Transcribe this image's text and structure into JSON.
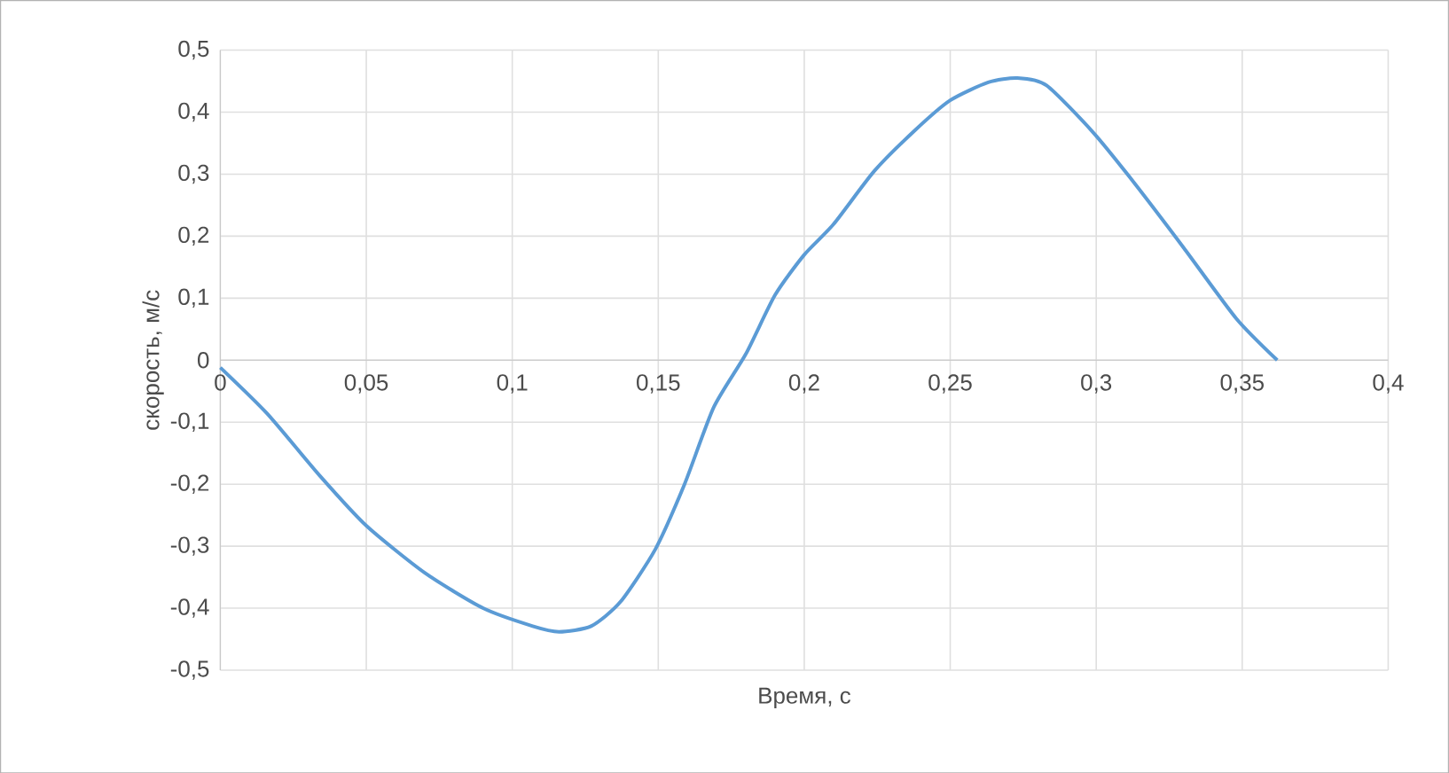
{
  "chart_data": {
    "type": "line",
    "xlabel": "Время, с",
    "ylabel": "скорость, м/с",
    "xlim": [
      0,
      0.4
    ],
    "ylim": [
      -0.5,
      0.5
    ],
    "xticks": [
      {
        "value": 0,
        "label": "0"
      },
      {
        "value": 0.05,
        "label": "0,05"
      },
      {
        "value": 0.1,
        "label": "0,1"
      },
      {
        "value": 0.15,
        "label": "0,15"
      },
      {
        "value": 0.2,
        "label": "0,2"
      },
      {
        "value": 0.25,
        "label": "0,25"
      },
      {
        "value": 0.3,
        "label": "0,3"
      },
      {
        "value": 0.35,
        "label": "0,35"
      },
      {
        "value": 0.4,
        "label": "0,4"
      }
    ],
    "yticks": [
      {
        "value": -0.5,
        "label": "-0,5"
      },
      {
        "value": -0.4,
        "label": "-0,4"
      },
      {
        "value": -0.3,
        "label": "-0,3"
      },
      {
        "value": -0.2,
        "label": "-0,2"
      },
      {
        "value": -0.1,
        "label": "-0,1"
      },
      0,
      {
        "value": 0.1,
        "label": "0,1"
      },
      {
        "value": 0.2,
        "label": "0,2"
      },
      {
        "value": 0.3,
        "label": "0,3"
      },
      {
        "value": 0.4,
        "label": "0,4"
      },
      {
        "value": 0.5,
        "label": "0,5"
      }
    ],
    "grid": true,
    "series": [
      {
        "color": "#5b9bd5",
        "x": [
          0,
          0.016,
          0.034,
          0.05,
          0.07,
          0.09,
          0.107,
          0.116,
          0.127,
          0.137,
          0.149,
          0.159,
          0.169,
          0.18,
          0.19,
          0.2,
          0.21,
          0.224,
          0.238,
          0.25,
          0.263,
          0.273,
          0.283,
          0.299,
          0.313,
          0.33,
          0.348,
          0.362
        ],
        "values": [
          -0.012,
          -0.086,
          -0.186,
          -0.267,
          -0.343,
          -0.4,
          -0.429,
          -0.438,
          -0.429,
          -0.39,
          -0.305,
          -0.2,
          -0.076,
          0.01,
          0.105,
          0.17,
          0.219,
          0.305,
          0.371,
          0.419,
          0.448,
          0.455,
          0.443,
          0.367,
          0.286,
          0.181,
          0.067,
          0
        ]
      }
    ]
  }
}
